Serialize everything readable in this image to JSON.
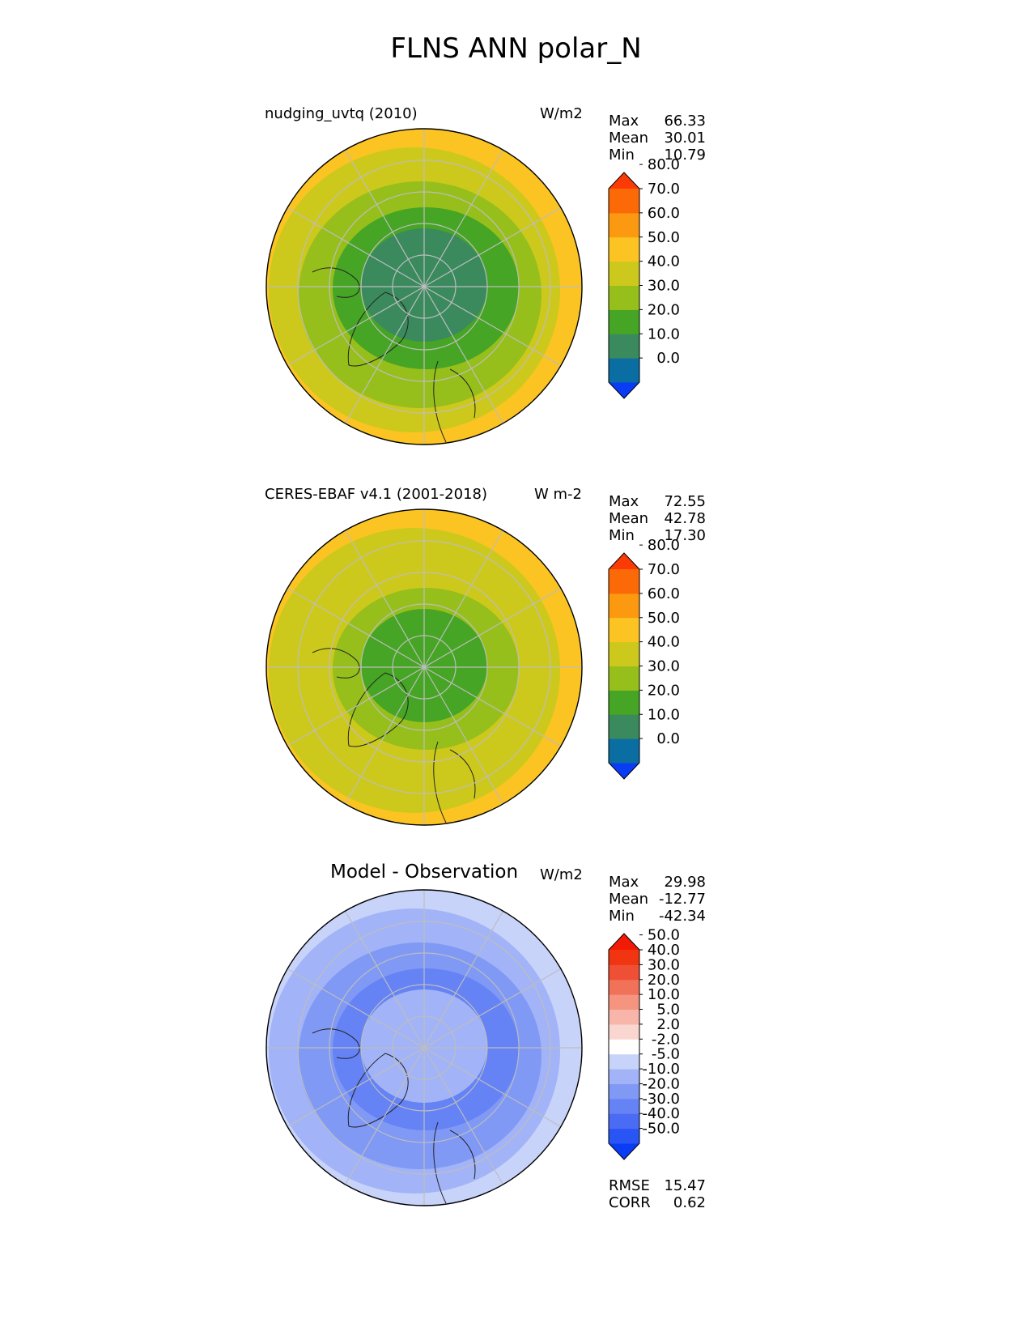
{
  "title": "FLNS ANN polar_N",
  "chart_data": [
    {
      "type": "heatmap",
      "projection": "north-polar-stereographic",
      "title": "nudging_uvtq (2010)",
      "units": "W/m2",
      "stats": [
        {
          "label": "Max",
          "value": "66.33"
        },
        {
          "label": "Mean",
          "value": "30.01"
        },
        {
          "label": "Min",
          "value": "10.79"
        }
      ],
      "colorbar": {
        "levels": [
          "0.0",
          "10.0",
          "20.0",
          "30.0",
          "40.0",
          "50.0",
          "60.0",
          "70.0",
          "80.0"
        ],
        "colors": [
          "#0a3cf5",
          "#0a6ea3",
          "#3a8a5e",
          "#46a524",
          "#96bf1c",
          "#cdc91c",
          "#fbc423",
          "#fb9a10",
          "#fb6a06",
          "#fb3a06"
        ],
        "extend": "both"
      },
      "map_zones": {
        "center": "#3a8a5e",
        "inner": "#46a524",
        "middle": "#96bf1c",
        "outer": "#cdc91c",
        "edge": "#fbc423"
      }
    },
    {
      "type": "heatmap",
      "projection": "north-polar-stereographic",
      "title": "CERES-EBAF v4.1 (2001-2018)",
      "units": "W m-2",
      "stats": [
        {
          "label": "Max",
          "value": "72.55"
        },
        {
          "label": "Mean",
          "value": "42.78"
        },
        {
          "label": "Min",
          "value": "17.30"
        }
      ],
      "colorbar": {
        "levels": [
          "0.0",
          "10.0",
          "20.0",
          "30.0",
          "40.0",
          "50.0",
          "60.0",
          "70.0",
          "80.0"
        ],
        "colors": [
          "#0a3cf5",
          "#0a6ea3",
          "#3a8a5e",
          "#46a524",
          "#96bf1c",
          "#cdc91c",
          "#fbc423",
          "#fb9a10",
          "#fb6a06",
          "#fb3a06"
        ],
        "extend": "both"
      },
      "map_zones": {
        "center": "#46a524",
        "inner": "#96bf1c",
        "middle": "#cdc91c",
        "outer": "#cdc91c",
        "edge": "#fbc423"
      }
    },
    {
      "type": "heatmap",
      "projection": "north-polar-stereographic",
      "title": "Model - Observation",
      "units": "W/m2",
      "stats": [
        {
          "label": "Max",
          "value": "29.98"
        },
        {
          "label": "Mean",
          "value": "-12.77"
        },
        {
          "label": "Min",
          "value": "-42.34"
        }
      ],
      "footer_stats": [
        {
          "label": "RMSE",
          "value": "15.47"
        },
        {
          "label": "CORR",
          "value": "0.62"
        }
      ],
      "colorbar": {
        "levels": [
          "-50.0",
          "-40.0",
          "-30.0",
          "-20.0",
          "-10.0",
          "-5.0",
          "-2.0",
          "2.0",
          "5.0",
          "10.0",
          "20.0",
          "30.0",
          "40.0",
          "50.0"
        ],
        "colors": [
          "#0a3cf5",
          "#2a55f5",
          "#4a6cf5",
          "#6583f5",
          "#8099f5",
          "#a2b4f7",
          "#c8d3fa",
          "#ffffff",
          "#fad6d0",
          "#f8b6aa",
          "#f5957f",
          "#f27259",
          "#ef5035",
          "#f03510",
          "#f21a06"
        ],
        "extend": "both"
      },
      "map_zones": {
        "center": "#a2b4f7",
        "inner": "#6583f5",
        "middle": "#8099f5",
        "outer": "#a2b4f7",
        "edge": "#c8d3fa"
      }
    }
  ]
}
